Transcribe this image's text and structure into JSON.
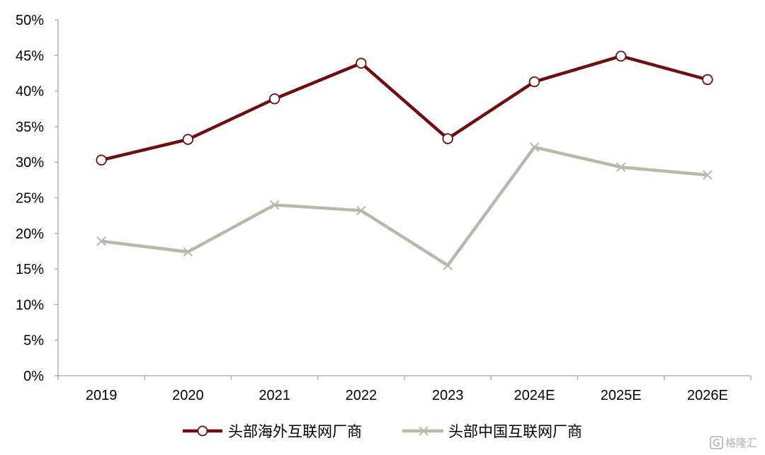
{
  "chart_data": {
    "type": "line",
    "categories": [
      "2019",
      "2020",
      "2021",
      "2022",
      "2023",
      "2024E",
      "2025E",
      "2026E"
    ],
    "series": [
      {
        "name": "头部海外互联网厂商",
        "values": [
          30.3,
          33.2,
          38.9,
          43.9,
          33.3,
          41.3,
          44.9,
          41.6
        ],
        "color": "#6e0e10",
        "marker": "circle"
      },
      {
        "name": "头部中国互联网厂商",
        "values": [
          18.9,
          17.4,
          24.0,
          23.2,
          15.5,
          32.1,
          29.3,
          28.2
        ],
        "color": "#b9b8ab",
        "marker": "x"
      }
    ],
    "ylim": [
      0,
      50
    ],
    "yticks": [
      "0%",
      "5%",
      "10%",
      "15%",
      "20%",
      "25%",
      "30%",
      "35%",
      "40%",
      "45%",
      "50%"
    ],
    "ytick_values": [
      0,
      5,
      10,
      15,
      20,
      25,
      30,
      35,
      40,
      45,
      50
    ],
    "legend_position": "bottom",
    "grid": false
  },
  "watermark": {
    "text": "格隆汇",
    "icon": "brand-logo-icon"
  }
}
